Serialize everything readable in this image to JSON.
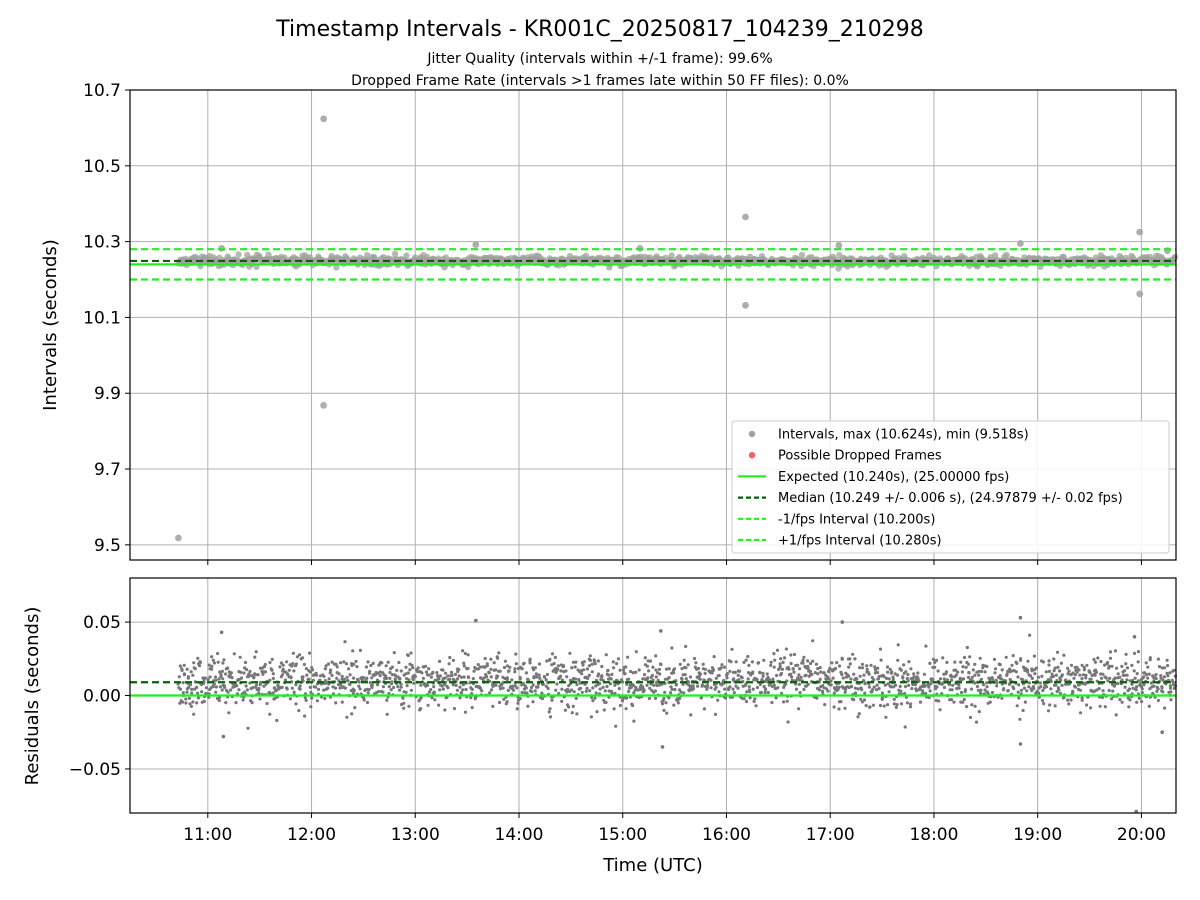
{
  "header": {
    "title": "Timestamp Intervals - KR001C_20250817_104239_210298",
    "subtitle1": "Jitter Quality (intervals within +/-1 frame): 99.6%",
    "subtitle2": "Dropped Frame Rate (intervals >1 frames late within 50 FF files): 0.0%"
  },
  "colors": {
    "points": "#a0a0a0",
    "residual_points": "#777777",
    "dropped": "#ee4444",
    "expected": "#22ee22",
    "median": "#006400",
    "bounds": "#22ee22",
    "grid": "#b0b0b0"
  },
  "chart_data": [
    {
      "type": "scatter",
      "title": "Timestamp Intervals - KR001C_20250817_104239_210298",
      "ylabel": "Intervals (seconds)",
      "xlabel": "",
      "xlim": [
        "10:15",
        "20:20"
      ],
      "ylim": [
        9.46,
        10.7
      ],
      "yticks": [
        "9.5",
        "9.7",
        "9.9",
        "10.1",
        "10.3",
        "10.5",
        "10.7"
      ],
      "ytick_values": [
        9.5,
        9.7,
        9.9,
        10.1,
        10.3,
        10.5,
        10.7
      ],
      "grid": true,
      "legend_position": "lower-right",
      "series": [
        {
          "name": "Intervals, max (10.624s), min (9.518s)",
          "kind": "points",
          "band_center": 10.249,
          "band_spread": 0.012,
          "x_range": [
            "10:43",
            "20:20"
          ]
        },
        {
          "name": "Possible Dropped Frames",
          "kind": "points",
          "points": []
        },
        {
          "name": "Expected (10.240s), (25.00000 fps)",
          "kind": "hline",
          "y": 10.24
        },
        {
          "name": "Median (10.249 +/- 0.006 s), (24.97879 +/- 0.02 fps)",
          "kind": "hline",
          "y": 10.249
        },
        {
          "name": "-1/fps Interval (10.200s)",
          "kind": "hline",
          "y": 10.2
        },
        {
          "name": "+1/fps Interval (10.280s)",
          "kind": "hline",
          "y": 10.28
        }
      ],
      "outliers": [
        {
          "x": "10:43",
          "y": 9.518
        },
        {
          "x": "12:07",
          "y": 10.624
        },
        {
          "x": "12:07",
          "y": 9.868
        },
        {
          "x": "13:35",
          "y": 10.292
        },
        {
          "x": "15:10",
          "y": 10.282
        },
        {
          "x": "16:11",
          "y": 10.365
        },
        {
          "x": "16:11",
          "y": 10.132
        },
        {
          "x": "17:05",
          "y": 10.29
        },
        {
          "x": "18:50",
          "y": 10.295
        },
        {
          "x": "19:59",
          "y": 10.325
        },
        {
          "x": "19:59",
          "y": 10.162
        },
        {
          "x": "11:08",
          "y": 10.282
        },
        {
          "x": "20:15",
          "y": 10.276
        }
      ]
    },
    {
      "type": "scatter",
      "ylabel": "Residuals (seconds)",
      "xlabel": "Time (UTC)",
      "xlim": [
        "10:15",
        "20:20"
      ],
      "ylim": [
        -0.08,
        0.08
      ],
      "yticks": [
        "−0.05",
        "0.00",
        "0.05"
      ],
      "ytick_values": [
        -0.05,
        0.0,
        0.05
      ],
      "xticks": [
        "11:00",
        "12:00",
        "13:00",
        "14:00",
        "15:00",
        "16:00",
        "17:00",
        "18:00",
        "19:00",
        "20:00"
      ],
      "grid": true,
      "series": [
        {
          "kind": "points",
          "band_center": 0.009,
          "band_spread": 0.012,
          "x_range": [
            "10:43",
            "20:20"
          ]
        },
        {
          "kind": "hline",
          "y": 0.0
        },
        {
          "kind": "hline",
          "y": 0.009
        }
      ],
      "outliers": [
        {
          "x": "11:08",
          "y": 0.043
        },
        {
          "x": "11:09",
          "y": -0.028
        },
        {
          "x": "13:35",
          "y": 0.051
        },
        {
          "x": "15:22",
          "y": 0.044
        },
        {
          "x": "15:23",
          "y": -0.035
        },
        {
          "x": "17:07",
          "y": 0.05
        },
        {
          "x": "18:50",
          "y": 0.053
        },
        {
          "x": "18:50",
          "y": -0.033
        },
        {
          "x": "19:57",
          "y": -0.079
        },
        {
          "x": "19:56",
          "y": 0.04
        },
        {
          "x": "20:12",
          "y": -0.025
        }
      ]
    }
  ]
}
